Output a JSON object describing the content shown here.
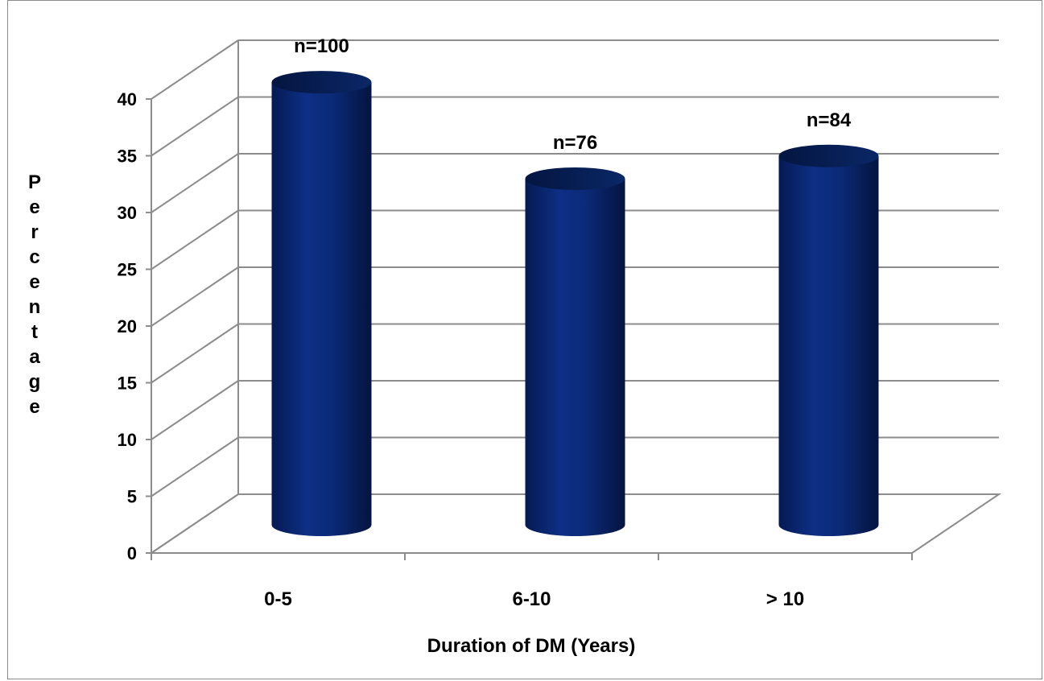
{
  "chart_data": {
    "type": "bar",
    "style": "3d-cylinder",
    "categories": [
      "0-5",
      "6-10",
      "> 10"
    ],
    "values": [
      39,
      30.5,
      32.5
    ],
    "data_labels": [
      "n=100",
      "n=76",
      "n=84"
    ],
    "xlabel": "Duration of DM (Years)",
    "ylabel": "Percentage",
    "ylim": [
      0,
      40
    ],
    "yticks": [
      "0",
      "5",
      "10",
      "15",
      "20",
      "25",
      "30",
      "35",
      "40"
    ],
    "grid": true,
    "legend": "none",
    "bar_color": "#0a2a7a",
    "grid_color": "#8c8c8c"
  }
}
